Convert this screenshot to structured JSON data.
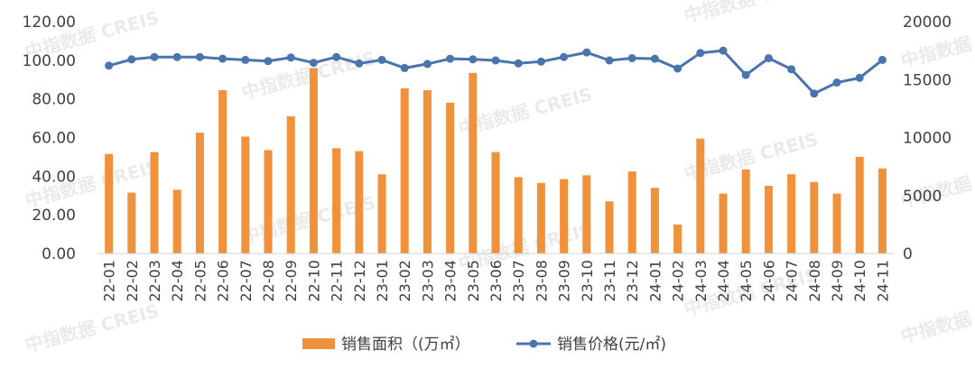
{
  "chart_data": {
    "type": "bar",
    "categories": [
      "22-01",
      "22-02",
      "22-03",
      "22-04",
      "22-05",
      "22-06",
      "22-07",
      "22-08",
      "22-09",
      "22-10",
      "22-11",
      "22-12",
      "23-01",
      "23-02",
      "23-03",
      "23-04",
      "23-05",
      "23-06",
      "23-07",
      "23-08",
      "23-09",
      "23-10",
      "23-11",
      "23-12",
      "24-01",
      "24-02",
      "24-03",
      "24-04",
      "24-05",
      "24-06",
      "24-07",
      "24-08",
      "24-09",
      "24-10",
      "24-11"
    ],
    "series": [
      {
        "name": "销售面积（(万㎡）",
        "type": "bar",
        "axis": "left",
        "color": "#f0913c",
        "values": [
          51.5,
          31.5,
          52.5,
          33,
          62.5,
          84.5,
          60.5,
          53.5,
          71,
          96,
          54.5,
          53,
          41,
          85.5,
          84.5,
          78,
          93.5,
          52.5,
          39.5,
          36.5,
          38.5,
          40.5,
          27,
          42.5,
          34,
          15,
          59.5,
          31,
          43.5,
          35,
          41,
          37,
          31,
          50,
          44
        ]
      },
      {
        "name": "销售价格(元/㎡)",
        "type": "line",
        "axis": "right",
        "color": "#4a74ad",
        "values": [
          16200,
          16750,
          16950,
          16950,
          16950,
          16800,
          16700,
          16600,
          16900,
          16450,
          16950,
          16400,
          16700,
          16000,
          16350,
          16800,
          16750,
          16650,
          16400,
          16550,
          16950,
          17350,
          16650,
          16850,
          16800,
          15950,
          17300,
          17500,
          15400,
          16850,
          15900,
          13800,
          14750,
          15150,
          16700
        ]
      }
    ],
    "ylim_left": [
      0,
      120
    ],
    "yticks_left": [
      "0.00",
      "20.00",
      "40.00",
      "60.00",
      "80.00",
      "100.00",
      "120.00"
    ],
    "ylim_right": [
      0,
      20000
    ],
    "yticks_right": [
      "0",
      "5000",
      "10000",
      "15000",
      "20000"
    ],
    "grid": false,
    "legend_position": "bottom-center",
    "watermark": "中指数据 CREIS"
  }
}
